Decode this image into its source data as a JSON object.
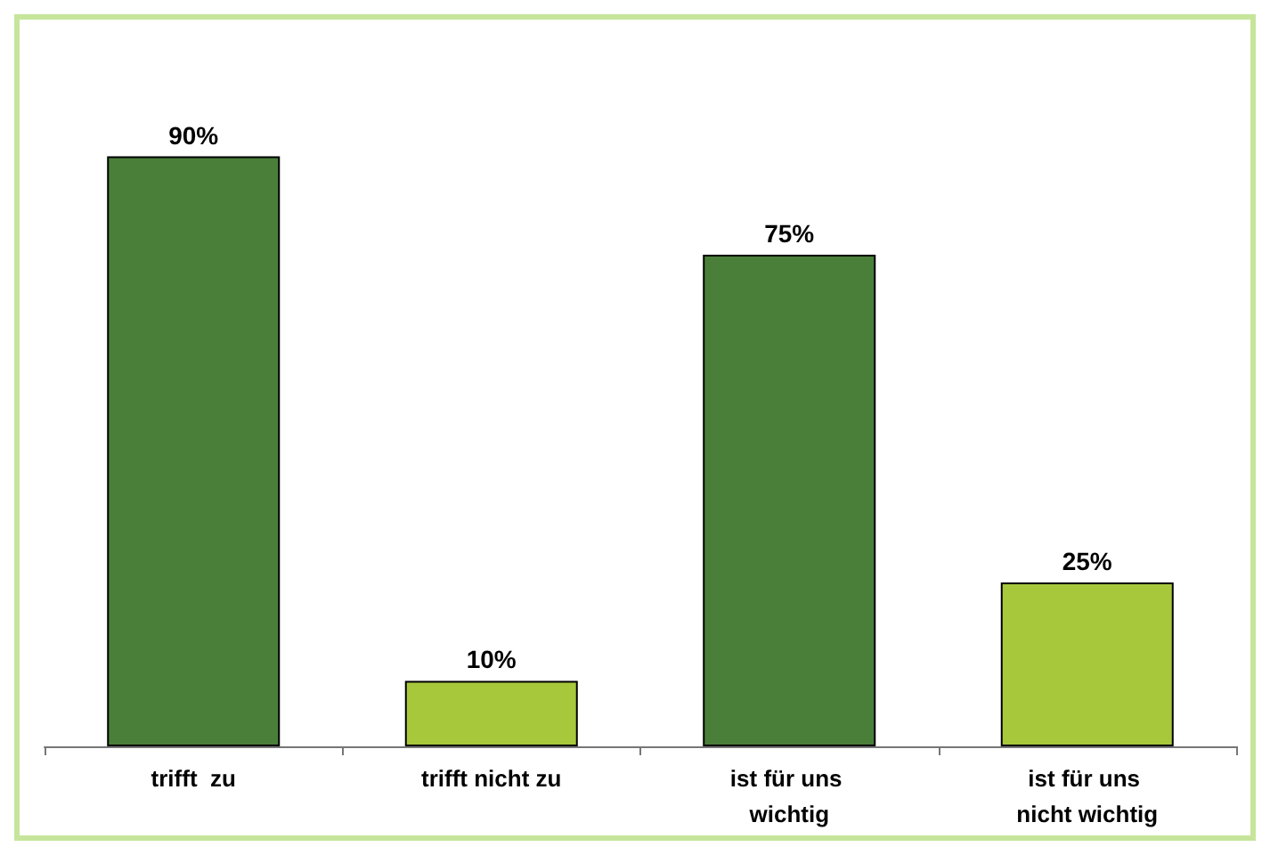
{
  "chart_data": {
    "type": "bar",
    "categories": [
      "trifft  zu",
      "trifft nicht zu",
      "ist für uns wichtig",
      "ist für uns nicht wichtig"
    ],
    "values": [
      90,
      10,
      75,
      25
    ],
    "colors": [
      "#4a7f3a",
      "#a8c83c",
      "#4a7f3a",
      "#a8c83c"
    ],
    "value_labels": [
      "90%",
      "10%",
      "75%",
      "25%"
    ],
    "grid": false
  }
}
